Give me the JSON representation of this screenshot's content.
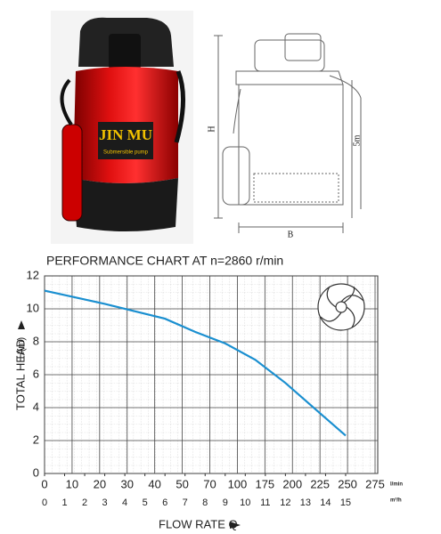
{
  "product": {
    "brand": "JIN MU",
    "subtitle": "Submersible pump"
  },
  "drawing": {
    "height_label": "H",
    "cable_label": "5m",
    "width_label": "B"
  },
  "chart_data": {
    "type": "line",
    "title": "PERFORMANCE CHART AT n=2860 r/min",
    "y_label": "TOTAL HEAD",
    "y_unit": "H(m)",
    "x_label": "FLOW RATE Q",
    "x": [
      0,
      3,
      6,
      7.5,
      9,
      10.5,
      12,
      13.5,
      15
    ],
    "series": [
      {
        "color": "#1a8fd0",
        "values": [
          11.1,
          10.3,
          9.4,
          8.6,
          7.9,
          6.9,
          5.5,
          3.9,
          2.3
        ]
      }
    ],
    "xlim": [
      0,
      16.6
    ],
    "xticks": [
      0,
      1,
      2,
      3,
      4,
      5,
      6,
      7,
      8,
      9,
      10,
      11,
      12,
      13,
      14,
      15
    ],
    "x_unit": "m³/h",
    "x_lmin_labels": [
      0,
      10,
      20,
      30,
      40,
      50,
      70,
      100,
      175,
      200,
      225,
      250,
      275
    ],
    "x_lmin_unit": "l/min",
    "ylim": [
      0,
      12
    ],
    "yticks": [
      0,
      2,
      4,
      6,
      8,
      10,
      12
    ],
    "grid": true
  }
}
